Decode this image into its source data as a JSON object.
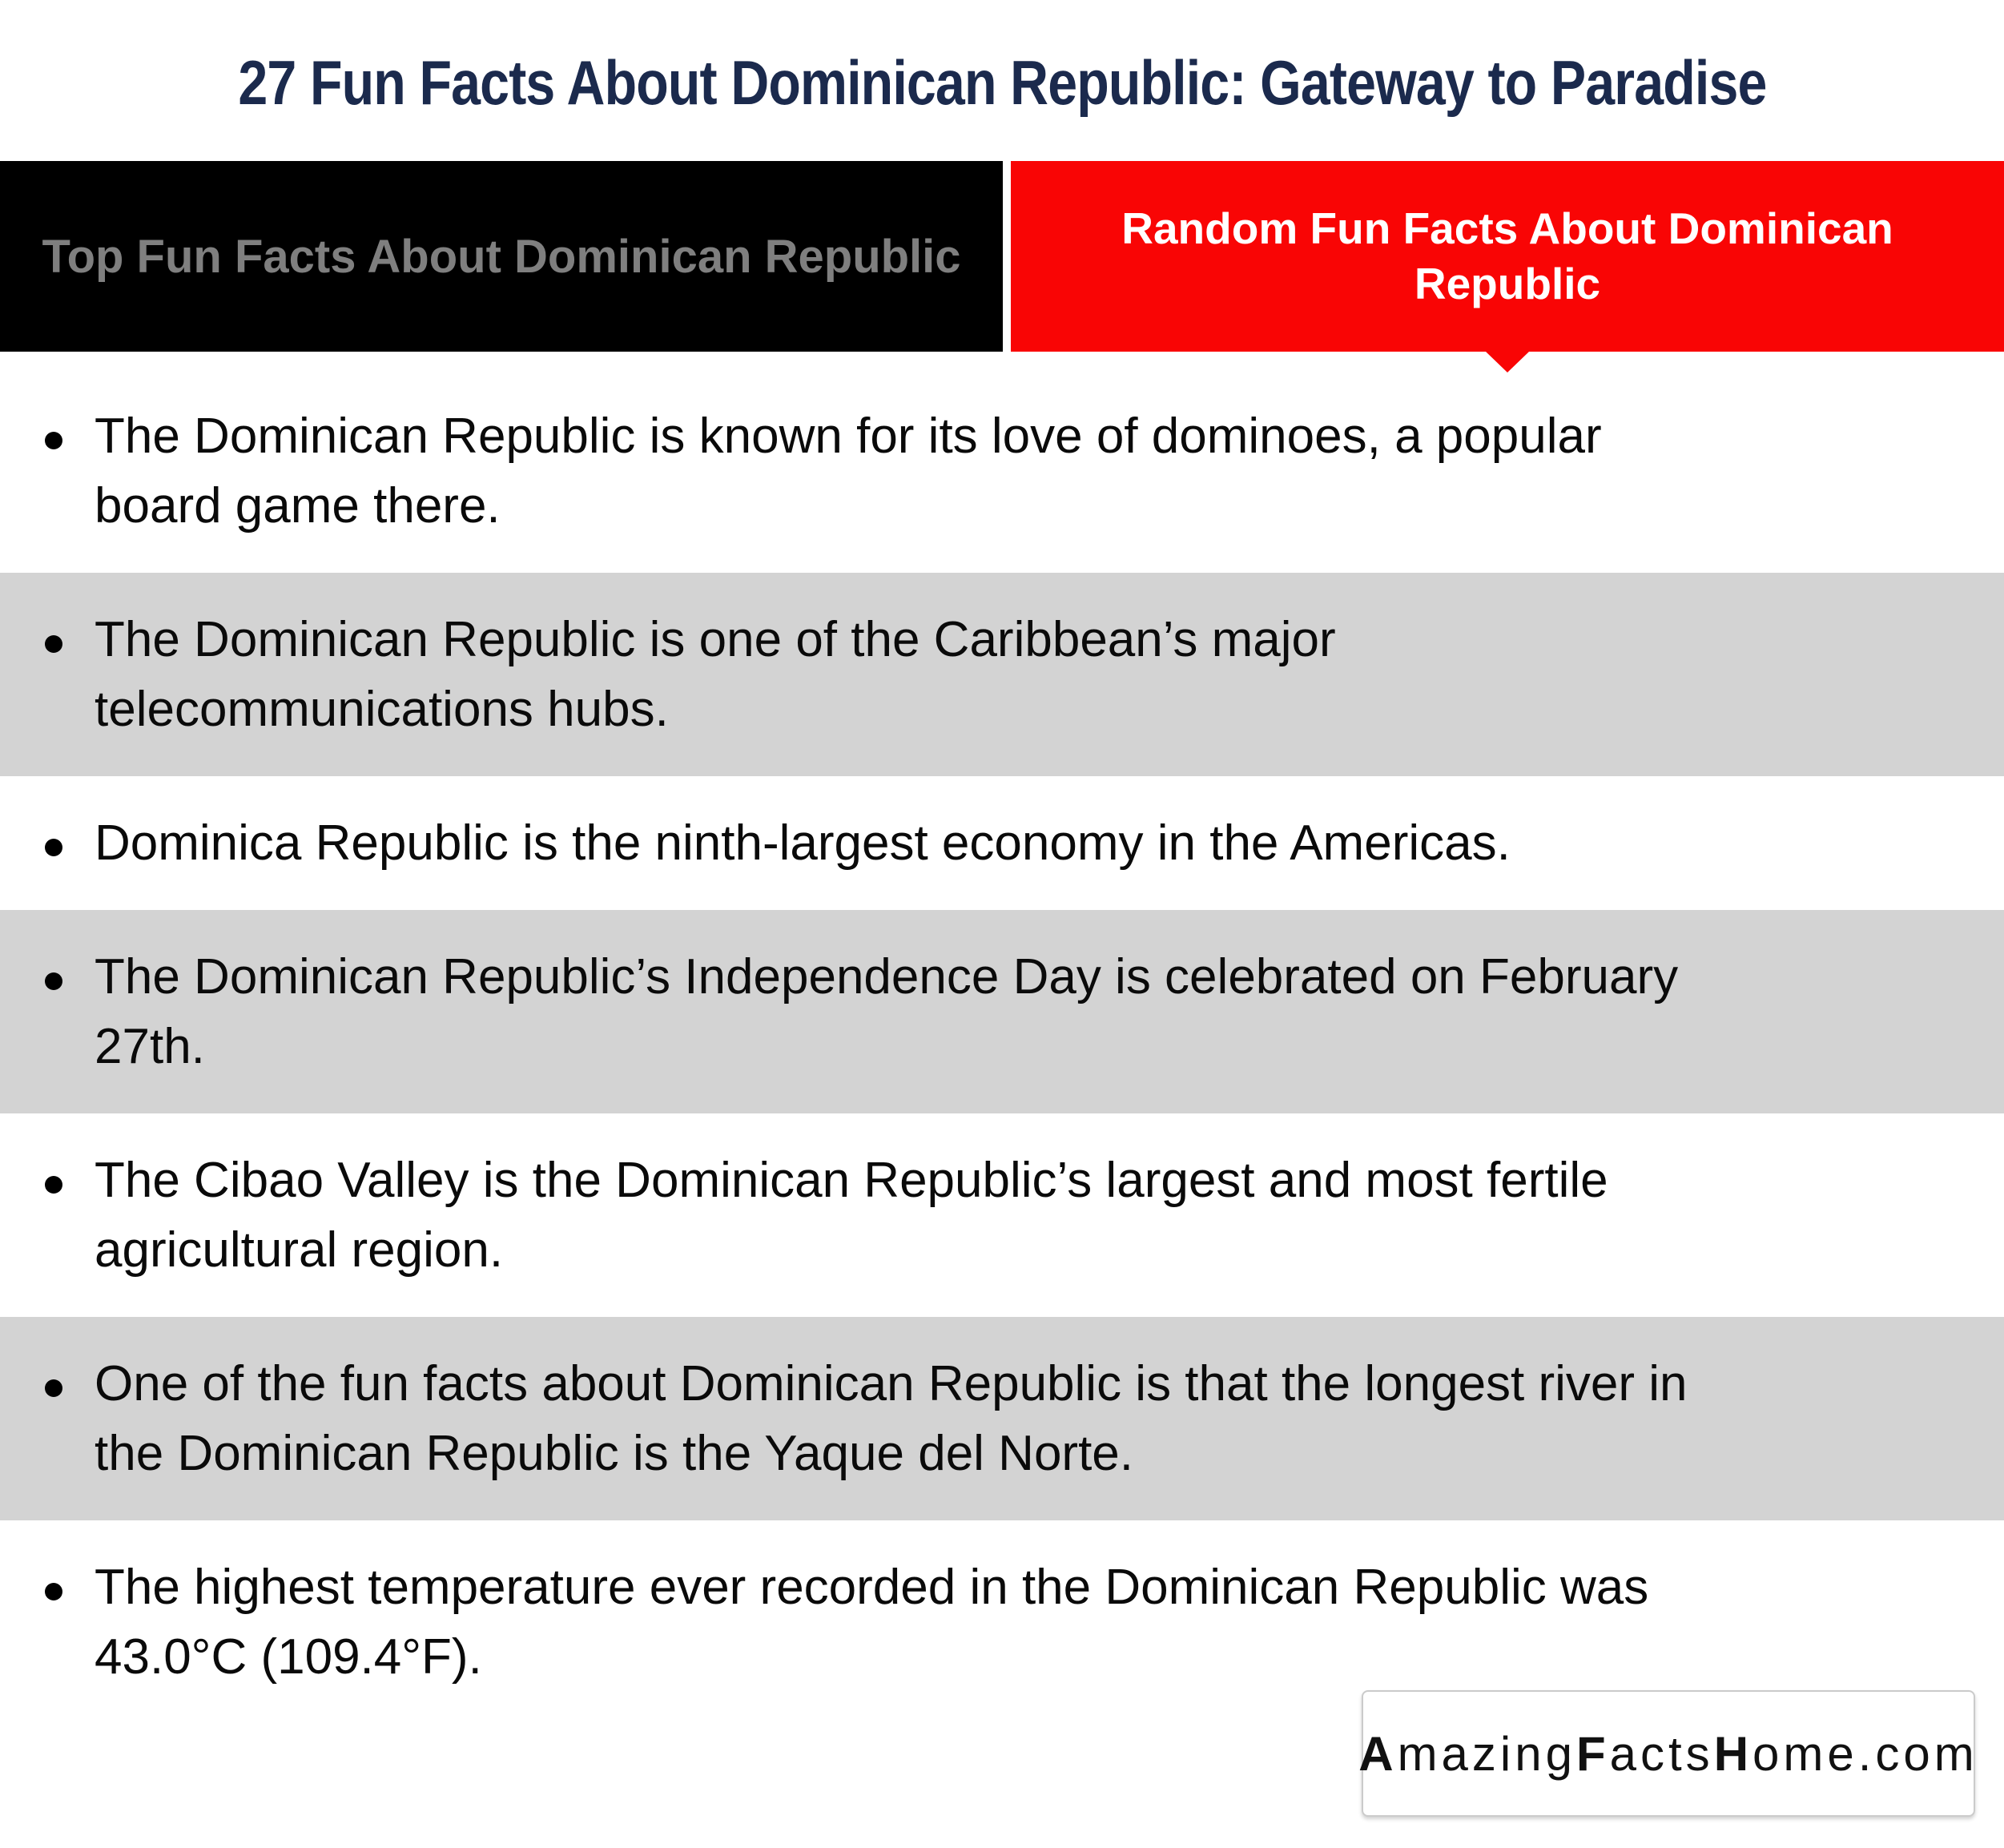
{
  "page": {
    "title": "27 Fun Facts About Dominican Republic: Gateway to Paradise"
  },
  "tabs": [
    {
      "id": "top-fun-facts",
      "label": "Top Fun Facts About Dominican Republic",
      "active": false
    },
    {
      "id": "random-fun-facts",
      "label": "Random Fun Facts About Dominican Republic",
      "active": true
    }
  ],
  "facts": {
    "items": [
      {
        "shaded": false,
        "lines": [
          "The Dominican Republic is known for its love of dominoes, a popular",
          "board game there."
        ]
      },
      {
        "shaded": true,
        "lines": [
          "The Dominican Republic is one of the Caribbean’s major",
          "telecommunications hubs."
        ]
      },
      {
        "shaded": false,
        "lines": [
          "Dominica Republic is the ninth-largest economy in the Americas."
        ]
      },
      {
        "shaded": true,
        "lines": [
          "The Dominican Republic’s Independence Day is celebrated on February",
          "27th."
        ]
      },
      {
        "shaded": false,
        "lines": [
          "The Cibao Valley is the Dominican Republic’s largest and most fertile",
          "agricultural region."
        ]
      },
      {
        "shaded": true,
        "lines": [
          "One of the fun facts about Dominican Republic is that the longest river in",
          "the Dominican Republic is the Yaque del Norte."
        ]
      },
      {
        "shaded": false,
        "lines": [
          "The highest temperature ever recorded in the Dominican Republic was",
          "43.0°C (109.4°F)."
        ]
      }
    ]
  },
  "footer": {
    "brand_segments": [
      {
        "text": "A",
        "bold": true
      },
      {
        "text": "mazing",
        "bold": false
      },
      {
        "text": "F",
        "bold": true
      },
      {
        "text": "acts",
        "bold": false
      },
      {
        "text": "H",
        "bold": true
      },
      {
        "text": "ome.com",
        "bold": false
      }
    ]
  },
  "colors": {
    "accent_red": "#f90505",
    "title_navy": "#1b2a4d",
    "shaded_band_gray": "#d3d3d3",
    "inactive_tab_bg": "#000000",
    "inactive_tab_text": "#7f7f7f"
  }
}
